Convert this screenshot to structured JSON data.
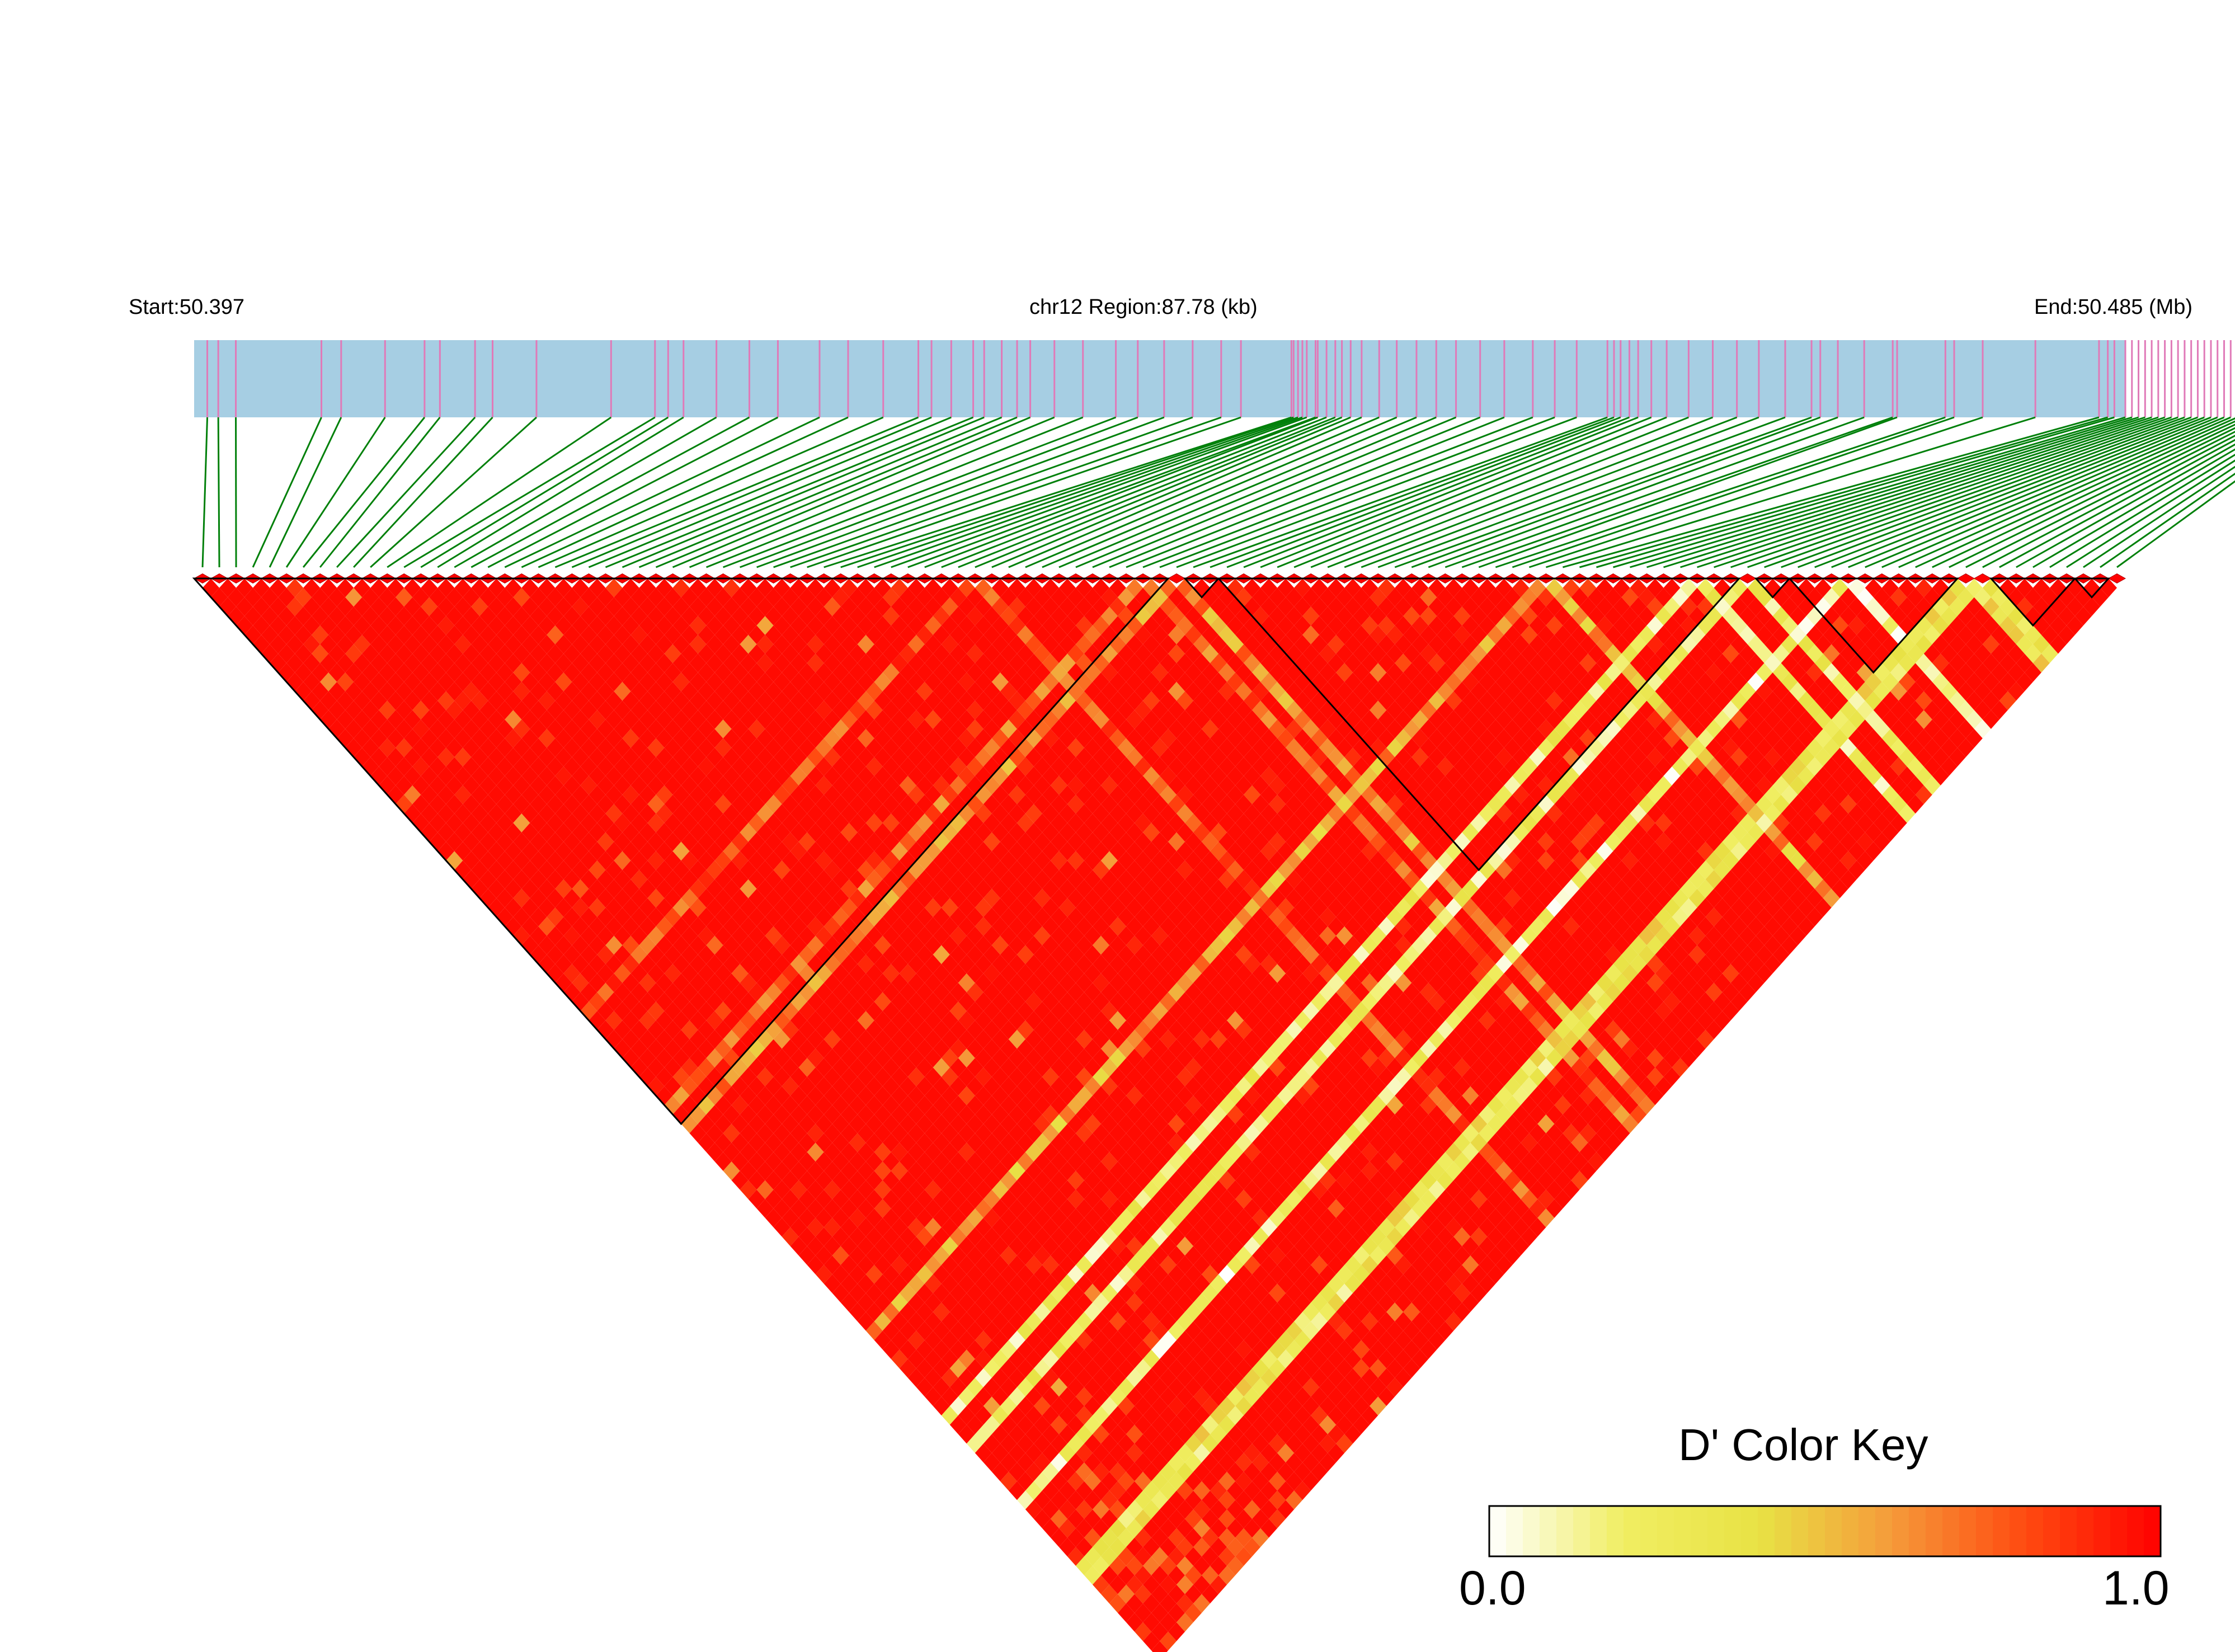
{
  "chart_data": {
    "type": "heatmap",
    "variant": "linkage-disequilibrium-triangle",
    "labels": {
      "start": "Start:50.397",
      "region": "chr12 Region:87.78 (kb)",
      "end": "End:50.485 (Mb)"
    },
    "region": {
      "chromosome": "chr12",
      "start_mb": 50.397,
      "end_mb": 50.485,
      "length_kb": 87.78
    },
    "snp_count": 115,
    "snp_positions_mb": [
      50.3976,
      50.3981,
      50.3989,
      50.4028,
      50.4037,
      50.4057,
      50.4075,
      50.4082,
      50.4098,
      50.4106,
      50.4126,
      50.416,
      50.418,
      50.4186,
      50.4193,
      50.4208,
      50.4223,
      50.4236,
      50.4255,
      50.4268,
      50.4284,
      50.43,
      50.4306,
      50.4315,
      50.4325,
      50.433,
      50.4338,
      50.4345,
      50.4351,
      50.4362,
      50.4375,
      50.439,
      50.44,
      50.4412,
      50.4425,
      50.4438,
      50.4447,
      50.447,
      50.4471,
      50.4473,
      50.4475,
      50.4477,
      50.4481,
      50.4482,
      50.4486,
      50.449,
      50.4493,
      50.4497,
      50.4502,
      50.451,
      50.4518,
      50.4527,
      50.4536,
      50.4545,
      50.4556,
      50.4567,
      50.458,
      50.459,
      50.46,
      50.4614,
      50.4617,
      50.462,
      50.4624,
      50.4628,
      50.4634,
      50.4641,
      50.4651,
      50.4662,
      50.4673,
      50.4683,
      50.4695,
      50.4707,
      50.4711,
      50.4719,
      50.4731,
      50.4744,
      50.4746,
      50.4768,
      50.4772,
      50.4785,
      50.4809,
      50.4838,
      50.4842,
      50.4845,
      50.485,
      50.4853,
      50.4856,
      50.4859,
      50.4862,
      50.4865,
      50.4868,
      50.4871,
      50.4874,
      50.4877,
      50.488,
      50.4883,
      50.4886,
      50.4889,
      50.4892,
      50.4895,
      50.4898,
      50.4901,
      50.4904,
      50.4907,
      50.491,
      50.4913,
      50.4916,
      50.4919,
      50.4922,
      50.4925,
      50.4928,
      50.4931,
      50.4934,
      50.4937,
      50.494
    ],
    "haplotype_blocks": [
      {
        "first_snp": 1,
        "last_snp": 58
      },
      {
        "first_snp": 60,
        "last_snp": 61
      },
      {
        "first_snp": 62,
        "last_snp": 92
      },
      {
        "first_snp": 94,
        "last_snp": 95
      },
      {
        "first_snp": 96,
        "last_snp": 105
      },
      {
        "first_snp": 108,
        "last_snp": 112
      },
      {
        "first_snp": 113,
        "last_snp": 114
      }
    ],
    "low_ld_snps": [
      {
        "snp": 47,
        "dprime": 0.6
      },
      {
        "snp": 57,
        "dprime": 0.55
      },
      {
        "snp": 59,
        "dprime": 0.45
      },
      {
        "snp": 81,
        "dprime": 0.4
      },
      {
        "snp": 90,
        "dprime": 0.05
      },
      {
        "snp": 93,
        "dprime": 0.05
      },
      {
        "snp": 99,
        "dprime": 0.0
      },
      {
        "snp": 106,
        "dprime": 0.15
      },
      {
        "snp": 107,
        "dprime": 0.1
      }
    ],
    "baseline_dprime": 0.97,
    "color_key": {
      "title": "D' Color Key",
      "min_label": "0.0",
      "max_label": "1.0",
      "min": 0.0,
      "max": 1.0,
      "stops": [
        "#ffffff",
        "#f0ee62",
        "#e8e245",
        "#f59a3a",
        "#ff4a10",
        "#ff0000"
      ]
    },
    "colors": {
      "region_bar": "#a6cee3",
      "snp_tick": "#e07ab8",
      "connector": "#00800a",
      "high_ld": "#ff0000"
    }
  }
}
